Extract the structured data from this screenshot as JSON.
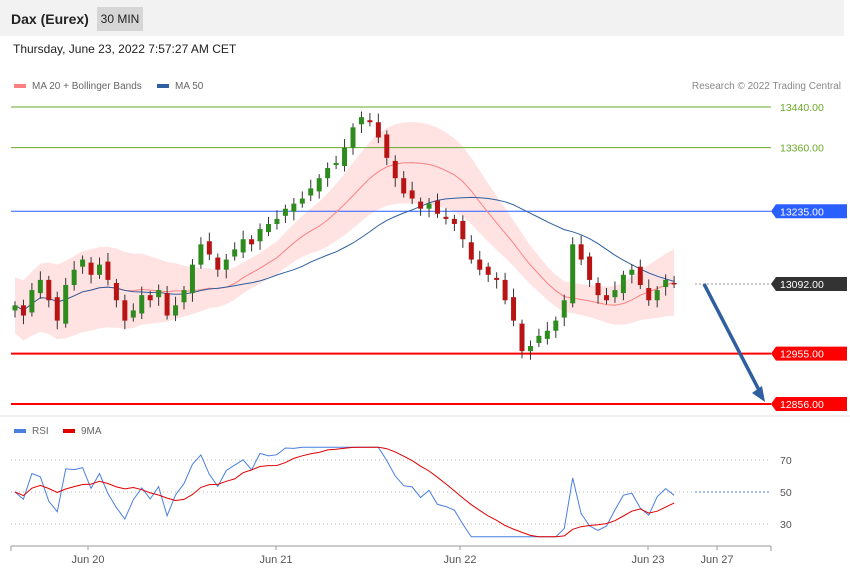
{
  "header": {
    "title": "Dax (Eurex)",
    "timeframe": "30 MIN"
  },
  "timestamp": "Thursday, June 23, 2022 7:57:27 AM CET",
  "legend": {
    "ma20_label": "MA 20 + Bollinger Bands",
    "ma20_color": "#ff8080",
    "ma50_label": "MA 50",
    "ma50_color": "#2f5f9f"
  },
  "credit": "Research © 2022 Trading Central",
  "chart_data": [
    {
      "type": "candlestick",
      "ylim": [
        12856,
        13440
      ],
      "x_ticks": [
        "Jun 20",
        "Jun 21",
        "Jun 22",
        "Jun 23",
        "Jun 27"
      ],
      "levels": [
        {
          "value": 13440,
          "label": "13440.00",
          "style": "thin",
          "color": "#6aaa28"
        },
        {
          "value": 13360,
          "label": "13360.00",
          "style": "thin",
          "color": "#6aaa28"
        },
        {
          "value": 13235,
          "label": "13235.00",
          "style": "badge",
          "color": "#2a5fff"
        },
        {
          "value": 13092,
          "label": "13092.00",
          "style": "badge",
          "color": "#333333"
        },
        {
          "value": 12955,
          "label": "12955.00",
          "style": "badge",
          "color": "#ff0000"
        },
        {
          "value": 12856,
          "label": "12856.00",
          "style": "badge",
          "color": "#ff0000"
        }
      ],
      "forecast_arrow": {
        "from": 13092,
        "to": 12856,
        "color": "#2f5f9f"
      },
      "close_path": [
        13050,
        13030,
        13080,
        13100,
        13060,
        13020,
        13090,
        13120,
        13140,
        13110,
        13130,
        13100,
        13060,
        13020,
        13040,
        13070,
        13060,
        13080,
        13030,
        13050,
        13080,
        13130,
        13170,
        13150,
        13120,
        13140,
        13160,
        13180,
        13170,
        13200,
        13210,
        13220,
        13240,
        13250,
        13260,
        13280,
        13300,
        13320,
        13330,
        13360,
        13400,
        13420,
        13410,
        13380,
        13340,
        13300,
        13270,
        13260,
        13240,
        13250,
        13230,
        13220,
        13210,
        13180,
        13140,
        13120,
        13110,
        13100,
        13060,
        13020,
        12960,
        12970,
        12990,
        13000,
        13020,
        13060,
        13170,
        13140,
        13100,
        13070,
        13060,
        13080,
        13110,
        13120,
        13090,
        13060,
        13080,
        13100,
        13092
      ]
    },
    {
      "type": "line",
      "series": [
        {
          "name": "RSI",
          "color": "#4a7fe0"
        },
        {
          "name": "9MA",
          "color": "#e00000"
        }
      ],
      "yticks": [
        70,
        50,
        30
      ]
    }
  ],
  "rsi_legend": {
    "rsi_label": "RSI",
    "rsi_color": "#4a7fe0",
    "ma_label": "9MA",
    "ma_color": "#e00000"
  }
}
